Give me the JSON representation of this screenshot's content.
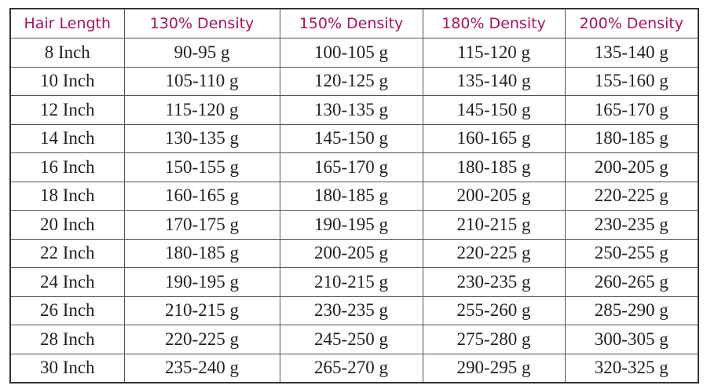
{
  "table": {
    "header": [
      "Hair Length",
      "130% Density",
      "150% Density",
      "180% Density",
      "200% Density"
    ],
    "rows": [
      [
        "8 Inch",
        "90-95 g",
        "100-105 g",
        "115-120 g",
        "135-140 g"
      ],
      [
        "10 Inch",
        "105-110 g",
        "120-125 g",
        "135-140 g",
        "155-160 g"
      ],
      [
        "12 Inch",
        "115-120 g",
        "130-135 g",
        "145-150 g",
        "165-170 g"
      ],
      [
        "14 Inch",
        "130-135 g",
        "145-150 g",
        "160-165 g",
        "180-185 g"
      ],
      [
        "16 Inch",
        "150-155 g",
        "165-170 g",
        "180-185 g",
        "200-205 g"
      ],
      [
        "18 Inch",
        "160-165 g",
        "180-185 g",
        "200-205 g",
        "220-225 g"
      ],
      [
        "20 Inch",
        "170-175 g",
        "190-195 g",
        "210-215 g",
        "230-235 g"
      ],
      [
        "22 Inch",
        "180-185 g",
        "200-205 g",
        "220-225 g",
        "250-255 g"
      ],
      [
        "24 Inch",
        "190-195 g",
        "210-215 g",
        "230-235 g",
        "260-265 g"
      ],
      [
        "26 Inch",
        "210-215 g",
        "230-235 g",
        "255-260 g",
        "285-290 g"
      ],
      [
        "28 Inch",
        "220-225 g",
        "245-250 g",
        "275-280 g",
        "300-305 g"
      ],
      [
        "30 Inch",
        "235-240 g",
        "265-270 g",
        "290-295 g",
        "320-325 g"
      ]
    ]
  }
}
